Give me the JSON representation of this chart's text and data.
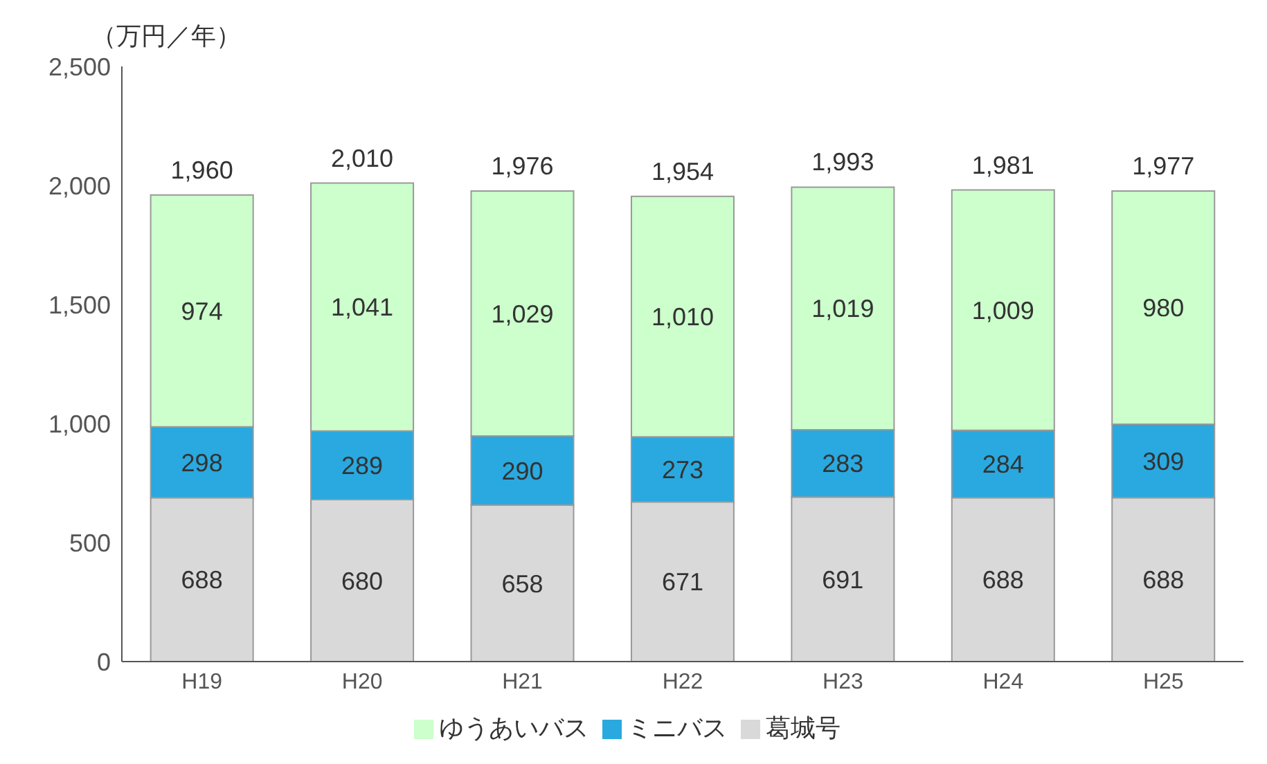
{
  "chart_data": {
    "type": "bar",
    "stacked": true,
    "ylabel": "（万円／年）",
    "categories": [
      "H19",
      "H20",
      "H21",
      "H22",
      "H23",
      "H24",
      "H25"
    ],
    "series": [
      {
        "name": "葛城号",
        "color": "#d9d9d9",
        "values": [
          688,
          680,
          658,
          671,
          691,
          688,
          688
        ],
        "value_labels": [
          "688",
          "680",
          "658",
          "671",
          "691",
          "688",
          "688"
        ]
      },
      {
        "name": "ミニバス",
        "color": "#29a9e0",
        "values": [
          298,
          289,
          290,
          273,
          283,
          284,
          309
        ],
        "value_labels": [
          "298",
          "289",
          "290",
          "273",
          "283",
          "284",
          "309"
        ]
      },
      {
        "name": "ゆうあいバス",
        "color": "#ccffcc",
        "values": [
          974,
          1041,
          1029,
          1010,
          1019,
          1009,
          980
        ],
        "value_labels": [
          "974",
          "1,041",
          "1,029",
          "1,010",
          "1,019",
          "1,009",
          "980"
        ]
      }
    ],
    "totals": [
      "1,960",
      "2,010",
      "1,976",
      "1,954",
      "1,993",
      "1,981",
      "1,977"
    ],
    "ylim": [
      0,
      2500
    ],
    "yticks": [
      {
        "value": 0,
        "label": "0"
      },
      {
        "value": 500,
        "label": "500"
      },
      {
        "value": 1000,
        "label": "1,000"
      },
      {
        "value": 1500,
        "label": "1,500"
      },
      {
        "value": 2000,
        "label": "2,000"
      },
      {
        "value": 2500,
        "label": "2,500"
      }
    ],
    "grid": false,
    "legend": "bottom"
  }
}
